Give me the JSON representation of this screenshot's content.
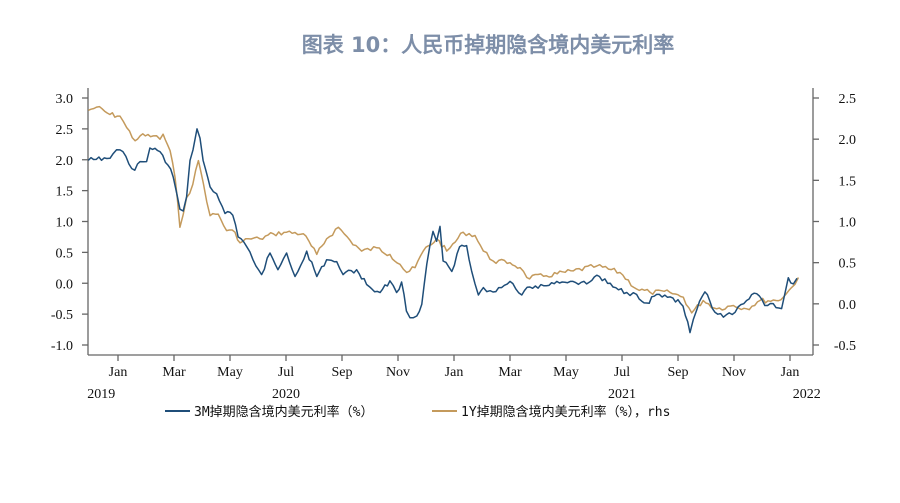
{
  "chart_data": {
    "type": "line",
    "title": "图表 10：人民币掉期隐含境内美元利率",
    "x_unit": "months since first Jan tick",
    "x_tick_labels": [
      "Jan",
      "Mar",
      "May",
      "Jul",
      "Sep",
      "Nov",
      "Jan",
      "Mar",
      "May",
      "Jul",
      "Sep",
      "Nov",
      "Jan"
    ],
    "x_tick_values": [
      0,
      2,
      4,
      6,
      8,
      10,
      12,
      14,
      16,
      18,
      20,
      22,
      24
    ],
    "year_labels": [
      "2019",
      "2020",
      "2021",
      "2022"
    ],
    "y_left": {
      "ylim": [
        -1.0,
        3.0
      ],
      "ticks": [
        "3.0",
        "2.5",
        "2.0",
        "1.5",
        "1.0",
        "0.5",
        "0.0",
        "-0.5",
        "-1.0"
      ]
    },
    "y_right": {
      "ylim": [
        -0.5,
        2.5
      ],
      "ticks": [
        "2.5",
        "2.0",
        "1.5",
        "1.0",
        "0.5",
        "0.0",
        "-0.5"
      ]
    },
    "grid": false,
    "legend_position": "bottom",
    "series": [
      {
        "name": "3M掉期隐含境内美元利率（%）",
        "axis": "left",
        "color": "#1f4e79",
        "x": [
          -1.06,
          -0.4,
          -0.17,
          0.07,
          0.6,
          0.79,
          1.02,
          1.14,
          1.5,
          1.79,
          1.97,
          2.1,
          2.21,
          2.33,
          2.45,
          2.57,
          2.68,
          2.82,
          2.93,
          3.04,
          3.29,
          3.52,
          3.82,
          4.1,
          4.29,
          4.6,
          4.82,
          5.13,
          5.43,
          5.71,
          6.02,
          6.32,
          6.74,
          7.1,
          7.45,
          7.81,
          8.04,
          8.52,
          8.88,
          9.36,
          9.71,
          9.95,
          10.13,
          10.3,
          10.43,
          10.67,
          10.85,
          11.03,
          11.25,
          11.38,
          11.5,
          11.61,
          11.92,
          12.2,
          12.45,
          12.63,
          12.87,
          13.05,
          13.29,
          13.7,
          14.0,
          14.42,
          14.71,
          15.3,
          15.67,
          16.25,
          16.74,
          17.1,
          17.68,
          18.17,
          18.52,
          18.88,
          19.24,
          19.82,
          20.18,
          20.43,
          20.67,
          20.96,
          21.32,
          21.62,
          22.04,
          22.45,
          22.81,
          23.1,
          23.4,
          23.7,
          23.94,
          24.12,
          24.25
        ],
        "y": [
          1.99,
          2.02,
          2.1,
          2.16,
          1.83,
          1.97,
          1.97,
          2.19,
          2.13,
          1.91,
          1.72,
          1.45,
          1.2,
          1.17,
          1.4,
          1.99,
          2.16,
          2.5,
          2.35,
          1.99,
          1.56,
          1.45,
          1.13,
          1.1,
          0.75,
          0.59,
          0.38,
          0.14,
          0.49,
          0.22,
          0.49,
          0.11,
          0.52,
          0.11,
          0.38,
          0.35,
          0.14,
          0.22,
          -0.02,
          -0.15,
          0.04,
          -0.15,
          0.02,
          -0.45,
          -0.56,
          -0.53,
          -0.34,
          0.31,
          0.84,
          0.68,
          0.92,
          0.36,
          0.19,
          0.59,
          0.61,
          0.2,
          -0.19,
          -0.07,
          -0.12,
          -0.07,
          0.03,
          -0.19,
          -0.06,
          -0.04,
          0.03,
          0.03,
          -0.01,
          0.13,
          -0.06,
          -0.15,
          -0.18,
          -0.32,
          -0.18,
          -0.24,
          -0.37,
          -0.8,
          -0.43,
          -0.14,
          -0.47,
          -0.55,
          -0.47,
          -0.28,
          -0.17,
          -0.36,
          -0.33,
          -0.41,
          0.09,
          -0.01,
          0.08
        ]
      },
      {
        "name": "1Y掉期隐含境内美元利率（%），rhs",
        "axis": "right",
        "color": "#c49a5c",
        "x": [
          -1.06,
          -0.76,
          -0.29,
          0.07,
          0.31,
          0.61,
          0.79,
          1.26,
          1.5,
          1.61,
          1.86,
          2.04,
          2.21,
          2.45,
          2.67,
          2.87,
          3.05,
          3.29,
          3.58,
          3.88,
          4.18,
          4.36,
          4.65,
          5.07,
          5.55,
          6.02,
          6.62,
          7.1,
          7.45,
          7.87,
          8.29,
          8.7,
          9.24,
          9.71,
          10.07,
          10.31,
          10.61,
          10.9,
          11.38,
          11.74,
          11.86,
          12.33,
          12.75,
          13.05,
          13.4,
          14.0,
          14.36,
          14.6,
          15.3,
          16.26,
          17.1,
          17.93,
          18.52,
          19.0,
          19.71,
          20.19,
          20.49,
          20.9,
          21.38,
          21.98,
          22.45,
          22.93,
          23.5,
          23.76,
          24.06,
          24.3
        ],
        "y": [
          2.35,
          2.39,
          2.3,
          2.28,
          2.14,
          1.98,
          2.04,
          2.04,
          2.0,
          2.06,
          1.86,
          1.53,
          0.93,
          1.29,
          1.45,
          1.74,
          1.46,
          1.07,
          1.09,
          0.89,
          0.87,
          0.74,
          0.79,
          0.79,
          0.85,
          0.87,
          0.85,
          0.6,
          0.79,
          0.93,
          0.77,
          0.64,
          0.68,
          0.6,
          0.48,
          0.38,
          0.44,
          0.64,
          0.79,
          0.64,
          0.68,
          0.87,
          0.83,
          0.64,
          0.52,
          0.5,
          0.44,
          0.32,
          0.34,
          0.4,
          0.46,
          0.38,
          0.18,
          0.14,
          0.14,
          0.08,
          -0.11,
          0.04,
          -0.06,
          -0.02,
          -0.06,
          0.04,
          0.04,
          0.08,
          0.2,
          0.32
        ]
      }
    ]
  }
}
